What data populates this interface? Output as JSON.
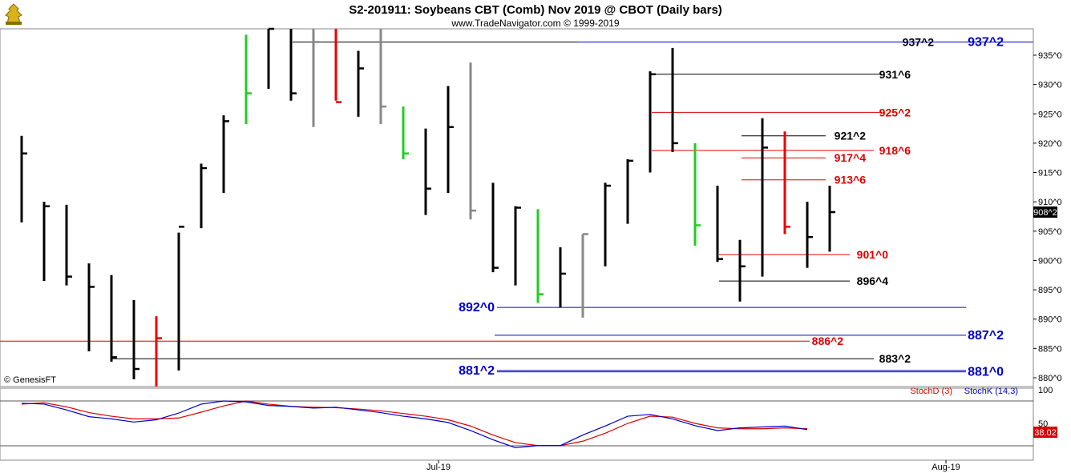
{
  "chart_data": {
    "type": "ohlc",
    "title": "S2-201911:  Soybeans CBT (Comb) Nov 2019 @ CBOT  (Daily bars)",
    "subtitle": "www.TradeNavigator.com © 1999-2019",
    "watermark": "© GenesisFT",
    "price_axis": {
      "ylim": [
        878.5,
        939.5
      ],
      "ticks": [
        880,
        885,
        890,
        895,
        900,
        905,
        910,
        915,
        920,
        925,
        930,
        935
      ],
      "tick_labels": [
        "880^0",
        "885^0",
        "890^0",
        "895^0",
        "900^0",
        "905^0",
        "910^0",
        "915^0",
        "920^0",
        "925^0",
        "930^0",
        "935^0"
      ],
      "last_price_label": "908^2",
      "last_price": 908.25
    },
    "x_labels": [
      "Jul-19",
      "Aug-19"
    ],
    "bars": [
      {
        "h": 921.25,
        "l": 906.5,
        "c": 918.25,
        "color": "black"
      },
      {
        "h": 910.0,
        "l": 896.5,
        "c": 909.25,
        "color": "black"
      },
      {
        "h": 909.5,
        "l": 895.75,
        "c": 897.25,
        "color": "black"
      },
      {
        "h": 899.5,
        "l": 884.5,
        "c": 895.5,
        "color": "black"
      },
      {
        "h": 897.5,
        "l": 882.75,
        "c": 883.5,
        "color": "black"
      },
      {
        "h": 893.25,
        "l": 879.75,
        "c": 881.5,
        "color": "black"
      },
      {
        "h": 890.5,
        "l": 878.5,
        "c": 886.75,
        "color": "red"
      },
      {
        "h": 904.75,
        "l": 881.25,
        "c": 905.75,
        "color": "black"
      },
      {
        "h": 916.5,
        "l": 905.5,
        "c": 915.75,
        "color": "black"
      },
      {
        "h": 924.75,
        "l": 911.5,
        "c": 923.75,
        "color": "black"
      },
      {
        "h": 938.5,
        "l": 923.25,
        "c": 928.5,
        "color": "green"
      },
      {
        "h": 939.5,
        "l": 929.25,
        "c": 939.5,
        "color": "black"
      },
      {
        "h": 939.5,
        "l": 927.25,
        "c": 928.5,
        "color": "black"
      },
      {
        "h": 939.5,
        "l": 922.75,
        "c": 937.25,
        "color": "gray"
      },
      {
        "h": 939.5,
        "l": 927.25,
        "c": 927.0,
        "color": "red"
      },
      {
        "h": 935.75,
        "l": 924.5,
        "c": 932.75,
        "color": "black"
      },
      {
        "h": 939.5,
        "l": 923.25,
        "c": 926.25,
        "color": "gray"
      },
      {
        "h": 926.25,
        "l": 917.25,
        "c": 918.25,
        "color": "green"
      },
      {
        "h": 922.5,
        "l": 907.75,
        "c": 912.25,
        "color": "black"
      },
      {
        "h": 929.75,
        "l": 911.5,
        "c": 922.75,
        "color": "black"
      },
      {
        "h": 933.75,
        "l": 907.0,
        "c": 908.5,
        "color": "gray"
      },
      {
        "h": 913.25,
        "l": 898.0,
        "c": 898.75,
        "color": "black"
      },
      {
        "h": 909.25,
        "l": 895.75,
        "c": 909.0,
        "color": "black"
      },
      {
        "h": 908.75,
        "l": 892.75,
        "c": 894.25,
        "color": "green"
      },
      {
        "h": 902.25,
        "l": 892.0,
        "c": 897.75,
        "color": "black"
      },
      {
        "h": 904.5,
        "l": 890.25,
        "c": 904.5,
        "color": "gray"
      },
      {
        "h": 913.25,
        "l": 899.0,
        "c": 912.75,
        "color": "black"
      },
      {
        "h": 917.25,
        "l": 906.25,
        "c": 917.0,
        "color": "black"
      },
      {
        "h": 932.25,
        "l": 915.0,
        "c": 931.75,
        "color": "black"
      },
      {
        "h": 936.25,
        "l": 918.5,
        "c": 920.0,
        "color": "black"
      },
      {
        "h": 920.0,
        "l": 902.5,
        "c": 906.0,
        "color": "green"
      },
      {
        "h": 912.75,
        "l": 899.75,
        "c": 900.25,
        "color": "black"
      },
      {
        "h": 903.5,
        "l": 893.0,
        "c": 899.0,
        "color": "black"
      },
      {
        "h": 924.25,
        "l": 897.25,
        "c": 919.25,
        "color": "black"
      },
      {
        "h": 922.0,
        "l": 904.5,
        "c": 905.75,
        "color": "red"
      },
      {
        "h": 910.0,
        "l": 898.75,
        "c": 904.0,
        "color": "black"
      },
      {
        "h": 912.75,
        "l": 901.5,
        "c": 908.25,
        "color": "black"
      }
    ],
    "levels": [
      {
        "label": "937^2",
        "value": 937.25,
        "color": "#000000",
        "labelColor": "#000000"
      },
      {
        "label": "937^2",
        "value": 937.25,
        "color": "#0000cc",
        "labelColor": "#0000cc",
        "big": true
      },
      {
        "label": "931^6",
        "value": 931.75,
        "color": "#000000",
        "labelColor": "#000000"
      },
      {
        "label": "925^2",
        "value": 925.25,
        "color": "#dd0000",
        "labelColor": "#dd0000"
      },
      {
        "label": "921^2",
        "value": 921.25,
        "color": "#000000",
        "labelColor": "#000000"
      },
      {
        "label": "918^6",
        "value": 918.75,
        "color": "#dd0000",
        "labelColor": "#dd0000"
      },
      {
        "label": "917^4",
        "value": 917.5,
        "color": "#dd0000",
        "labelColor": "#dd0000"
      },
      {
        "label": "913^6",
        "value": 913.75,
        "color": "#dd0000",
        "labelColor": "#dd0000"
      },
      {
        "label": "901^0",
        "value": 901.0,
        "color": "#dd0000",
        "labelColor": "#dd0000"
      },
      {
        "label": "896^4",
        "value": 896.5,
        "color": "#000000",
        "labelColor": "#000000"
      },
      {
        "label": "892^0",
        "value": 892.0,
        "color": "#0000cc",
        "labelColor": "#0000cc",
        "big": true
      },
      {
        "label": "887^2",
        "value": 887.25,
        "color": "#0000cc",
        "labelColor": "#0000cc",
        "big": true
      },
      {
        "label": "886^2",
        "value": 886.25,
        "color": "#dd0000",
        "labelColor": "#dd0000"
      },
      {
        "label": "883^2",
        "value": 883.25,
        "color": "#000000",
        "labelColor": "#000000"
      },
      {
        "label": "881^2",
        "value": 881.25,
        "color": "#0000cc",
        "labelColor": "#0000cc",
        "big": true
      },
      {
        "label": "881^0",
        "value": 881.0,
        "color": "#0000cc",
        "labelColor": "#0000cc",
        "big": true
      }
    ],
    "stochastic": {
      "ylim": [
        0,
        100
      ],
      "tick_labels": [
        "100",
        "50"
      ],
      "last_value_label": "38.02",
      "legend": [
        {
          "name": "StochD (3)",
          "color": "#dd0000"
        },
        {
          "name": "StochK (14,3)",
          "color": "#0000cc"
        }
      ],
      "stochK": [
        95,
        93,
        80,
        65,
        60,
        53,
        58,
        73,
        93,
        100,
        98,
        90,
        88,
        84,
        86,
        80,
        74,
        66,
        60,
        52,
        34,
        16,
        5,
        8,
        8,
        24,
        44,
        66,
        70,
        60,
        45,
        34,
        40,
        42,
        44,
        36
      ],
      "stochD": [
        93,
        96,
        87,
        74,
        66,
        60,
        60,
        62,
        75,
        89,
        100,
        93,
        88,
        86,
        85,
        82,
        78,
        72,
        66,
        58,
        44,
        24,
        12,
        8,
        8,
        14,
        28,
        50,
        66,
        64,
        50,
        40,
        38,
        38,
        40,
        38
      ]
    }
  }
}
